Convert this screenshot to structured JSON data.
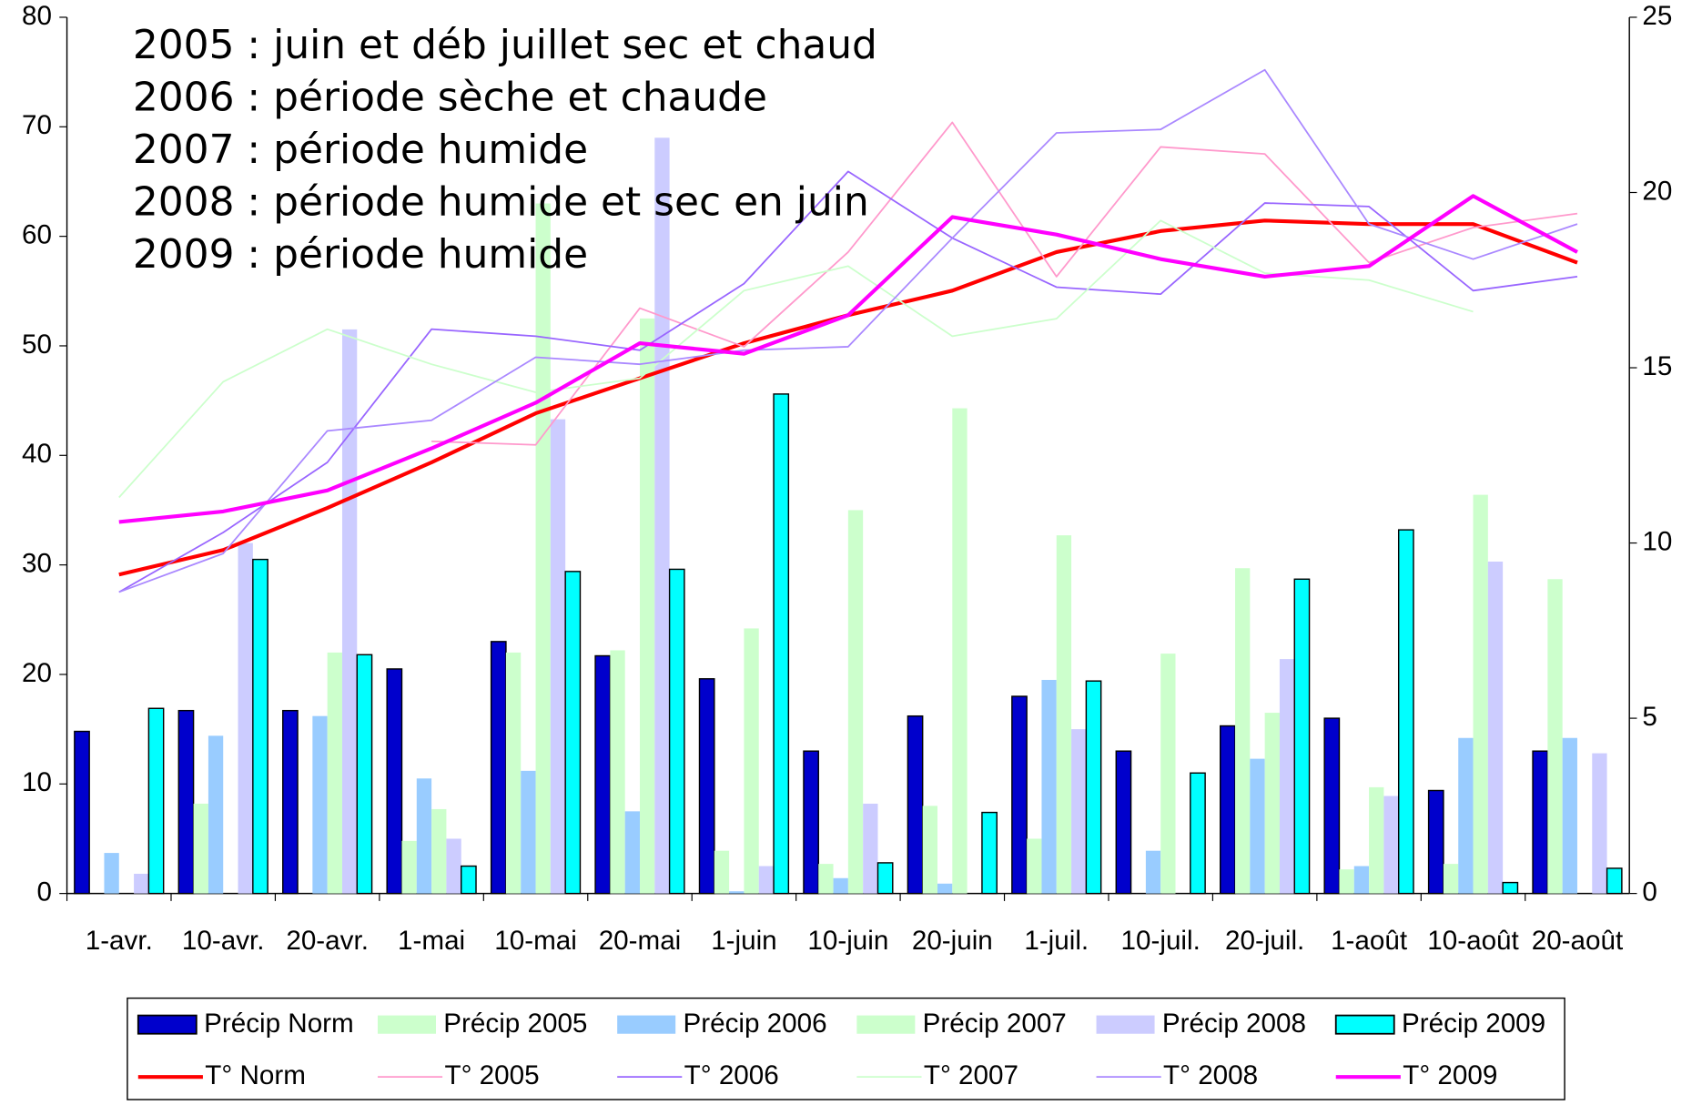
{
  "chart_data": {
    "type": "bar_line",
    "annotations": [
      "2005 : juin et déb juillet sec et chaud",
      "2006 : période sèche et chaude",
      "2007 : période humide",
      "2008 : période humide et sec en juin",
      "2009 : période humide"
    ],
    "categories": [
      "1-avr.",
      "10-avr.",
      "20-avr.",
      "1-mai",
      "10-mai",
      "20-mai",
      "1-juin",
      "10-juin",
      "20-juin",
      "1-juil.",
      "10-juil.",
      "20-juil.",
      "1-août",
      "10-août",
      "20-août"
    ],
    "ylim": [
      0,
      80
    ],
    "yticks": [
      0,
      10,
      20,
      30,
      40,
      50,
      60,
      70,
      80
    ],
    "y2lim": [
      0,
      25
    ],
    "y2ticks": [
      0,
      5,
      10,
      15,
      20,
      25
    ],
    "series": [
      {
        "name": "Précip Norm",
        "type": "bar",
        "color": "#0000cc",
        "outline": "#000000",
        "values": [
          14.8,
          16.7,
          16.7,
          20.5,
          23,
          21.7,
          19.6,
          13,
          16.2,
          18,
          13,
          15.3,
          16,
          9.4,
          13
        ]
      },
      {
        "name": "Précip 2005",
        "type": "bar",
        "color": "#ccffcc",
        "values": [
          0,
          8.2,
          0,
          4.8,
          22,
          22.2,
          3.9,
          2.7,
          8,
          5,
          0,
          29.7,
          2.2,
          2.7,
          28.7
        ]
      },
      {
        "name": "Précip 2006",
        "type": "bar",
        "color": "#99ccff",
        "values": [
          3.7,
          14.4,
          16.2,
          10.5,
          11.2,
          7.5,
          0.2,
          1.4,
          0.9,
          19.5,
          3.9,
          12.3,
          2.5,
          14.2,
          14.2
        ]
      },
      {
        "name": "Précip 2007",
        "type": "bar",
        "color": "#ccffcc",
        "values": [
          0,
          0,
          22,
          7.7,
          63,
          52.5,
          24.2,
          35,
          44.3,
          32.7,
          21.9,
          16.5,
          9.7,
          36.4,
          0
        ]
      },
      {
        "name": "Précip 2008",
        "type": "bar",
        "color": "#ccccff",
        "values": [
          1.8,
          32,
          51.5,
          5,
          43.3,
          69,
          2.5,
          8.2,
          0,
          15,
          0,
          21.4,
          8.9,
          30.3,
          12.8
        ]
      },
      {
        "name": "Précip 2009",
        "type": "bar",
        "color": "#00ffff",
        "outline": "#000000",
        "values": [
          16.9,
          30.5,
          21.8,
          2.5,
          29.4,
          29.6,
          45.6,
          2.8,
          7.4,
          19.4,
          11,
          28.7,
          33.2,
          1,
          2.3
        ]
      },
      {
        "name": "T° Norm",
        "type": "line",
        "axis": "y2",
        "color": "#ff0000",
        "width": 3.5,
        "values": [
          9.1,
          9.8,
          11,
          12.3,
          13.7,
          14.7,
          15.7,
          16.5,
          17.2,
          18.3,
          18.9,
          19.2,
          19.1,
          19.1,
          18
        ]
      },
      {
        "name": "T° 2005",
        "type": "line",
        "axis": "y2",
        "color": "#ff99cc",
        "width": 1.5,
        "values": [
          null,
          null,
          null,
          12.9,
          12.8,
          16.7,
          15.6,
          18.3,
          22,
          17.6,
          21.3,
          21.1,
          18,
          19,
          19.4
        ]
      },
      {
        "name": "T° 2006",
        "type": "line",
        "axis": "y2",
        "color": "#9966ff",
        "width": 1.5,
        "values": [
          8.6,
          10.3,
          12.3,
          16.1,
          15.9,
          15.5,
          17.4,
          20.6,
          18.7,
          17.3,
          17.1,
          19.7,
          19.6,
          17.2,
          17.6
        ]
      },
      {
        "name": "T° 2007",
        "type": "line",
        "axis": "y2",
        "color": "#ccffcc",
        "width": 1.5,
        "values": [
          11.3,
          14.6,
          16.1,
          15.1,
          14.3,
          14.7,
          17.2,
          17.9,
          15.9,
          16.4,
          19.2,
          17.7,
          17.5,
          16.6,
          null
        ]
      },
      {
        "name": "T° 2008",
        "type": "line",
        "axis": "y2",
        "color": "#aa88ff",
        "width": 1.5,
        "values": [
          8.6,
          9.7,
          13.2,
          13.5,
          15.3,
          15.1,
          15.5,
          15.6,
          18.7,
          21.7,
          21.8,
          23.5,
          19.1,
          18.1,
          19.1
        ]
      },
      {
        "name": "T° 2009",
        "type": "line",
        "axis": "y2",
        "color": "#ff00ff",
        "width": 3.5,
        "values": [
          10.6,
          10.9,
          11.5,
          12.7,
          14,
          15.7,
          15.4,
          16.5,
          19.3,
          18.8,
          18.1,
          17.6,
          17.9,
          19.9,
          18.3
        ]
      }
    ]
  }
}
